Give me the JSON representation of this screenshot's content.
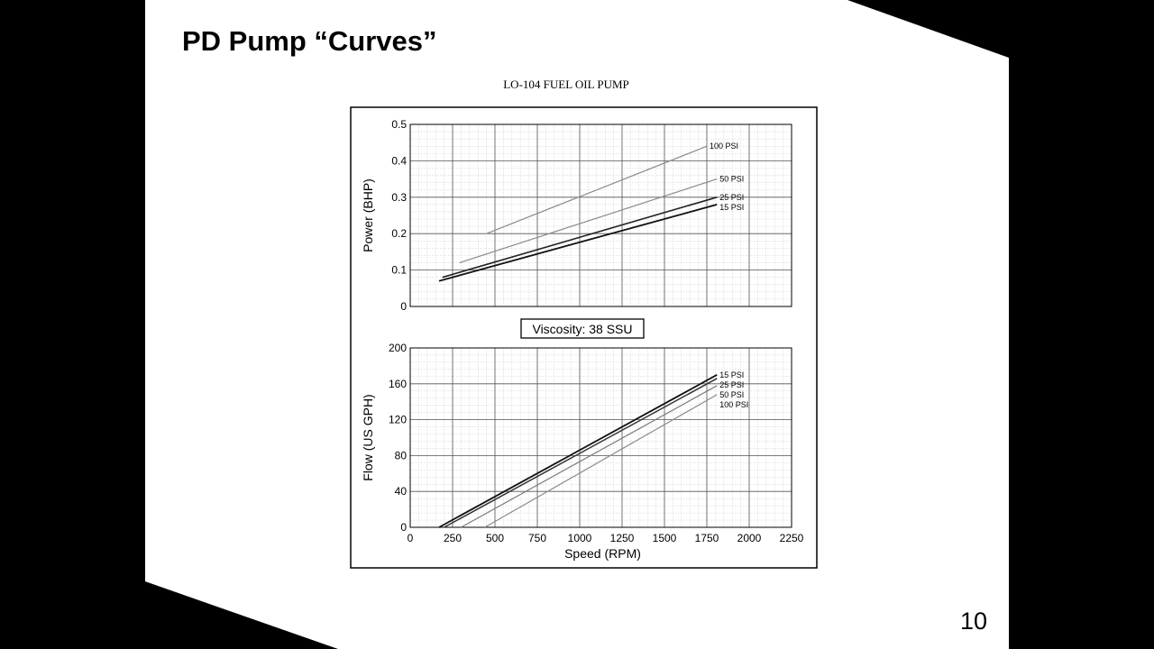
{
  "slide": {
    "title": "PD Pump “Curves”",
    "page_number": "10"
  },
  "figure": {
    "title": "LO-104 FUEL OIL PUMP",
    "viscosity_label": "Viscosity: 38 SSU"
  },
  "colors": {
    "background": "#000000",
    "slide": "#ffffff",
    "grid_major": "#555555",
    "grid_minor": "#bbbbbb"
  },
  "chart_data": [
    {
      "type": "line",
      "title": "",
      "xlabel": "",
      "ylabel": "Power (BHP)",
      "xlim": [
        0,
        2250
      ],
      "ylim": [
        0,
        0.5
      ],
      "yticks": [
        "0",
        "0.1",
        "0.2",
        "0.3",
        "0.4",
        "0.5"
      ],
      "grid": true,
      "series": [
        {
          "name": "100 PSI",
          "x": [
            450,
            1750
          ],
          "y": [
            0.2,
            0.44
          ],
          "color": "#8a8a8a",
          "width": 1.2
        },
        {
          "name": "50 PSI",
          "x": [
            290,
            1810
          ],
          "y": [
            0.12,
            0.35
          ],
          "color": "#8a8a8a",
          "width": 1.2
        },
        {
          "name": "25 PSI",
          "x": [
            190,
            1810
          ],
          "y": [
            0.08,
            0.3
          ],
          "color": "#222222",
          "width": 1.6
        },
        {
          "name": "15 PSI",
          "x": [
            170,
            1810
          ],
          "y": [
            0.07,
            0.28
          ],
          "color": "#111111",
          "width": 1.8
        }
      ]
    },
    {
      "type": "line",
      "title": "",
      "xlabel": "Speed (RPM)",
      "ylabel": "Flow (US GPH)",
      "xlim": [
        0,
        2250
      ],
      "ylim": [
        0,
        200
      ],
      "xticks": [
        "0",
        "250",
        "500",
        "750",
        "1000",
        "1250",
        "1500",
        "1750",
        "2000",
        "2250"
      ],
      "yticks": [
        "0",
        "40",
        "80",
        "120",
        "160",
        "200"
      ],
      "grid": true,
      "series": [
        {
          "name": "15 PSI",
          "x": [
            170,
            1810
          ],
          "y": [
            0,
            170
          ],
          "color": "#111111",
          "width": 1.8
        },
        {
          "name": "25 PSI",
          "x": [
            200,
            1810
          ],
          "y": [
            0,
            166
          ],
          "color": "#333333",
          "width": 1.5
        },
        {
          "name": "50 PSI",
          "x": [
            300,
            1810
          ],
          "y": [
            0,
            158
          ],
          "color": "#7a7a7a",
          "width": 1.2
        },
        {
          "name": "100 PSI",
          "x": [
            440,
            1810
          ],
          "y": [
            0,
            148
          ],
          "color": "#8a8a8a",
          "width": 1.2
        }
      ]
    }
  ]
}
